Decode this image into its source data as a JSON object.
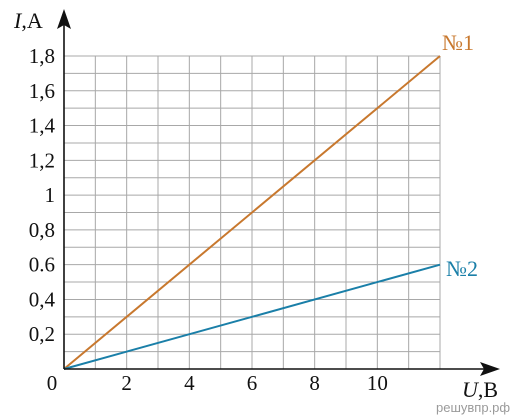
{
  "chart_data": {
    "type": "line",
    "title": "",
    "xlabel": {
      "symbol": "U",
      "unit": ",В"
    },
    "ylabel": {
      "symbol": "I",
      "unit": ",А"
    },
    "xlim": [
      0,
      12
    ],
    "ylim": [
      0,
      1.8
    ],
    "x_ticks": [
      0,
      2,
      4,
      6,
      8,
      10
    ],
    "x_tick_labels": [
      "0",
      "2",
      "4",
      "6",
      "8",
      "10"
    ],
    "y_ticks": [
      0.2,
      0.4,
      0.6,
      0.8,
      1,
      1.2,
      1.4,
      1.6,
      1.8
    ],
    "y_tick_labels": [
      "0,2",
      "0,4",
      "0.6",
      "0,8",
      "1",
      "1,2",
      "1,4",
      "1,6",
      "1,8"
    ],
    "grid": true,
    "series": [
      {
        "name": "№1",
        "color": "#c8782e",
        "x": [
          0,
          12
        ],
        "y": [
          0,
          1.8
        ]
      },
      {
        "name": "№2",
        "color": "#1a7fa8",
        "x": [
          0,
          12
        ],
        "y": [
          0,
          0.6
        ]
      }
    ]
  },
  "watermark": "решувпр.рф"
}
